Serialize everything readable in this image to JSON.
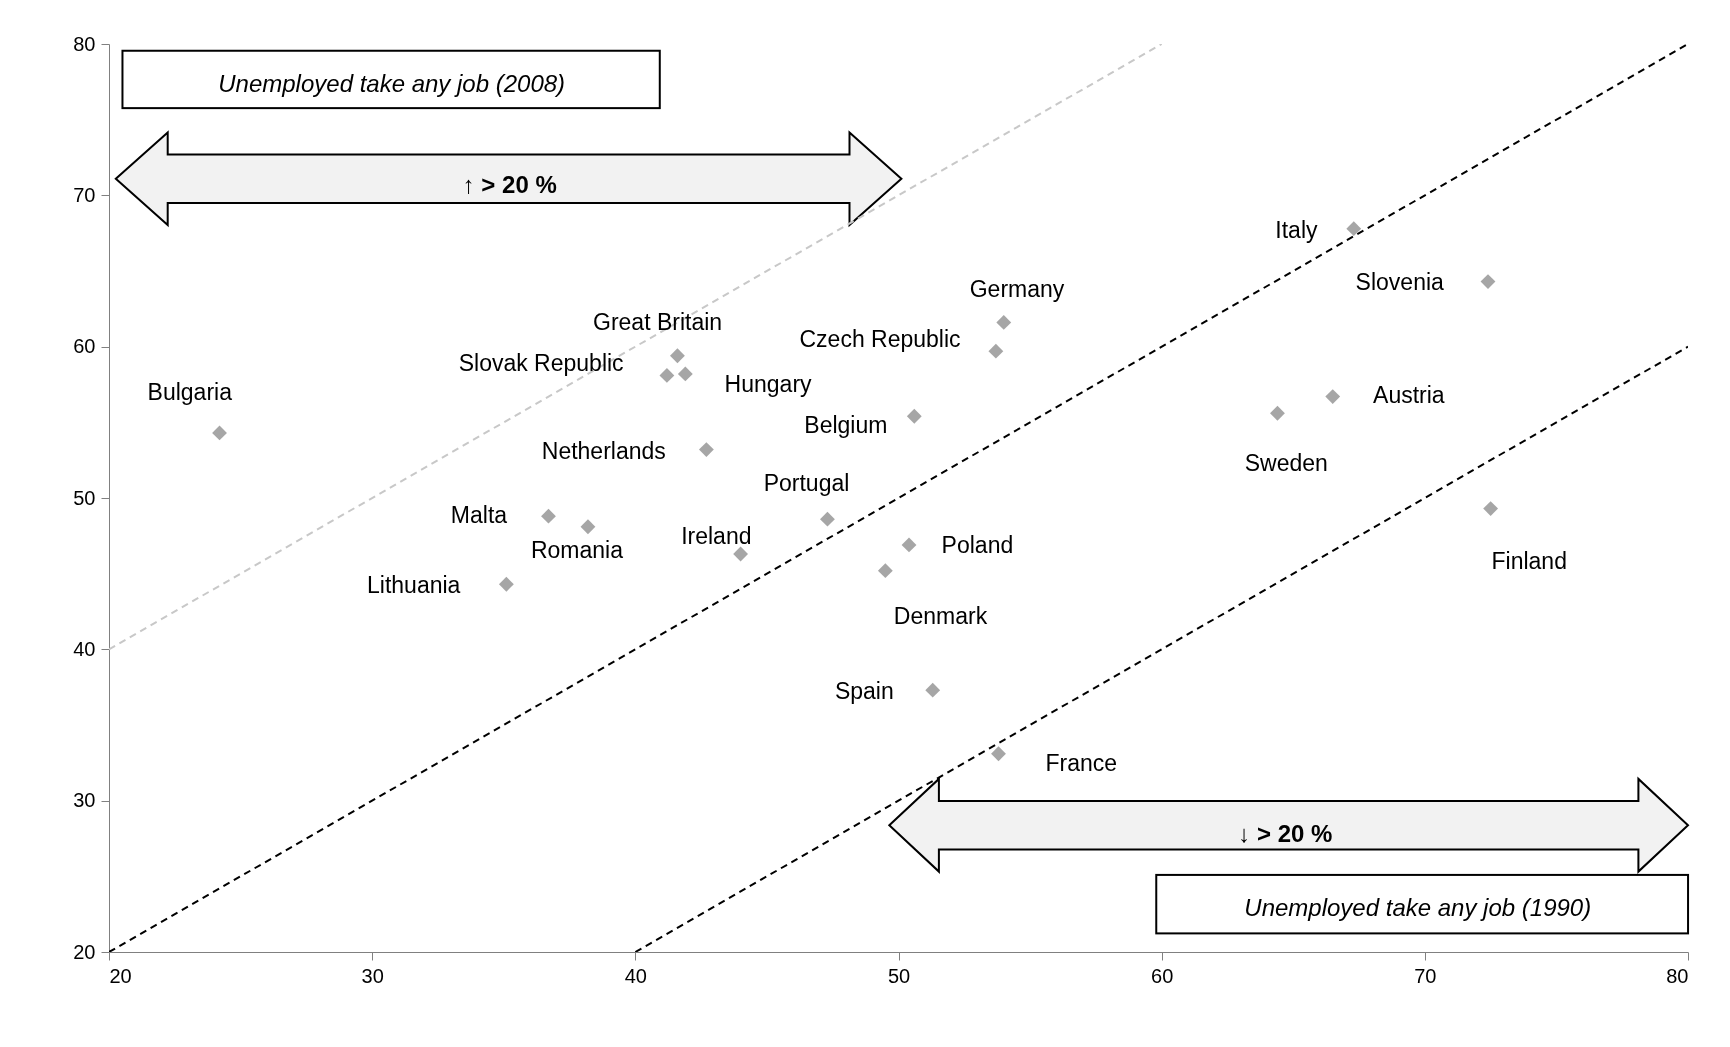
{
  "chart_data": {
    "type": "scatter",
    "xlim": [
      20,
      80
    ],
    "ylim": [
      20,
      80
    ],
    "xticks": [
      20,
      30,
      40,
      50,
      60,
      70,
      80
    ],
    "yticks": [
      20,
      30,
      40,
      50,
      60,
      70,
      80
    ],
    "marker": "diamond",
    "grid": false,
    "annotations": [
      "Unemployed take any job (2008)",
      "↑ > 20 %",
      "↓ > 20 %",
      "Unemployed take any job (1990)"
    ],
    "series": [
      {
        "type": "line",
        "x": [
          20,
          60
        ],
        "values": [
          40,
          80
        ],
        "color": "#c8c8c8",
        "line_style": "dashed",
        "marker": "none"
      },
      {
        "type": "line",
        "x": [
          20,
          80
        ],
        "values": [
          20,
          80
        ],
        "color": "#000000",
        "line_style": "dashed",
        "marker": "none"
      },
      {
        "type": "line",
        "x": [
          40,
          80
        ],
        "values": [
          20,
          60
        ],
        "color": "#000000",
        "line_style": "dashed",
        "marker": "none"
      },
      {
        "name": "Bulgaria",
        "x": [
          24.2
        ],
        "values": [
          54.3
        ],
        "color": "#a6a6a6"
      },
      {
        "name": "Great Britain",
        "x": [
          41.6
        ],
        "values": [
          59.4
        ],
        "color": "#a6a6a6"
      },
      {
        "name": "Slovak Republic",
        "x": [
          41.2
        ],
        "values": [
          58.1
        ],
        "color": "#a6a6a6"
      },
      {
        "name": "Hungary",
        "x": [
          41.9
        ],
        "values": [
          58.2
        ],
        "color": "#a6a6a6"
      },
      {
        "name": "Netherlands",
        "x": [
          42.7
        ],
        "values": [
          53.2
        ],
        "color": "#a6a6a6"
      },
      {
        "name": "Malta",
        "x": [
          36.7
        ],
        "values": [
          48.8
        ],
        "color": "#a6a6a6"
      },
      {
        "name": "Romania",
        "x": [
          38.2
        ],
        "values": [
          48.1
        ],
        "color": "#a6a6a6"
      },
      {
        "name": "Lithuania",
        "x": [
          35.1
        ],
        "values": [
          44.3
        ],
        "color": "#a6a6a6"
      },
      {
        "name": "Ireland",
        "x": [
          44.0
        ],
        "values": [
          46.3
        ],
        "color": "#a6a6a6"
      },
      {
        "name": "Portugal",
        "x": [
          47.3
        ],
        "values": [
          48.6
        ],
        "color": "#a6a6a6"
      },
      {
        "name": "Belgium",
        "x": [
          50.6
        ],
        "values": [
          55.4
        ],
        "color": "#a6a6a6"
      },
      {
        "name": "Czech Republic",
        "x": [
          53.7
        ],
        "values": [
          59.7
        ],
        "color": "#a6a6a6"
      },
      {
        "name": "Germany",
        "x": [
          54.0
        ],
        "values": [
          61.6
        ],
        "color": "#a6a6a6"
      },
      {
        "name": "Poland",
        "x": [
          50.4
        ],
        "values": [
          46.9
        ],
        "color": "#a6a6a6"
      },
      {
        "name": "Denmark",
        "x": [
          49.5
        ],
        "values": [
          45.2
        ],
        "color": "#a6a6a6"
      },
      {
        "name": "Spain",
        "x": [
          51.3
        ],
        "values": [
          37.3
        ],
        "color": "#a6a6a6"
      },
      {
        "name": "France",
        "x": [
          53.8
        ],
        "values": [
          33.1
        ],
        "color": "#a6a6a6"
      },
      {
        "name": "Italy",
        "x": [
          67.3
        ],
        "values": [
          67.8
        ],
        "color": "#a6a6a6"
      },
      {
        "name": "Slovenia",
        "x": [
          72.4
        ],
        "values": [
          64.3
        ],
        "color": "#a6a6a6"
      },
      {
        "name": "Austria",
        "x": [
          66.5
        ],
        "values": [
          56.7
        ],
        "color": "#a6a6a6"
      },
      {
        "name": "Sweden",
        "x": [
          64.4
        ],
        "values": [
          55.6
        ],
        "color": "#a6a6a6"
      },
      {
        "name": "Finland",
        "x": [
          72.5
        ],
        "values": [
          49.3
        ],
        "color": "#a6a6a6"
      }
    ]
  }
}
